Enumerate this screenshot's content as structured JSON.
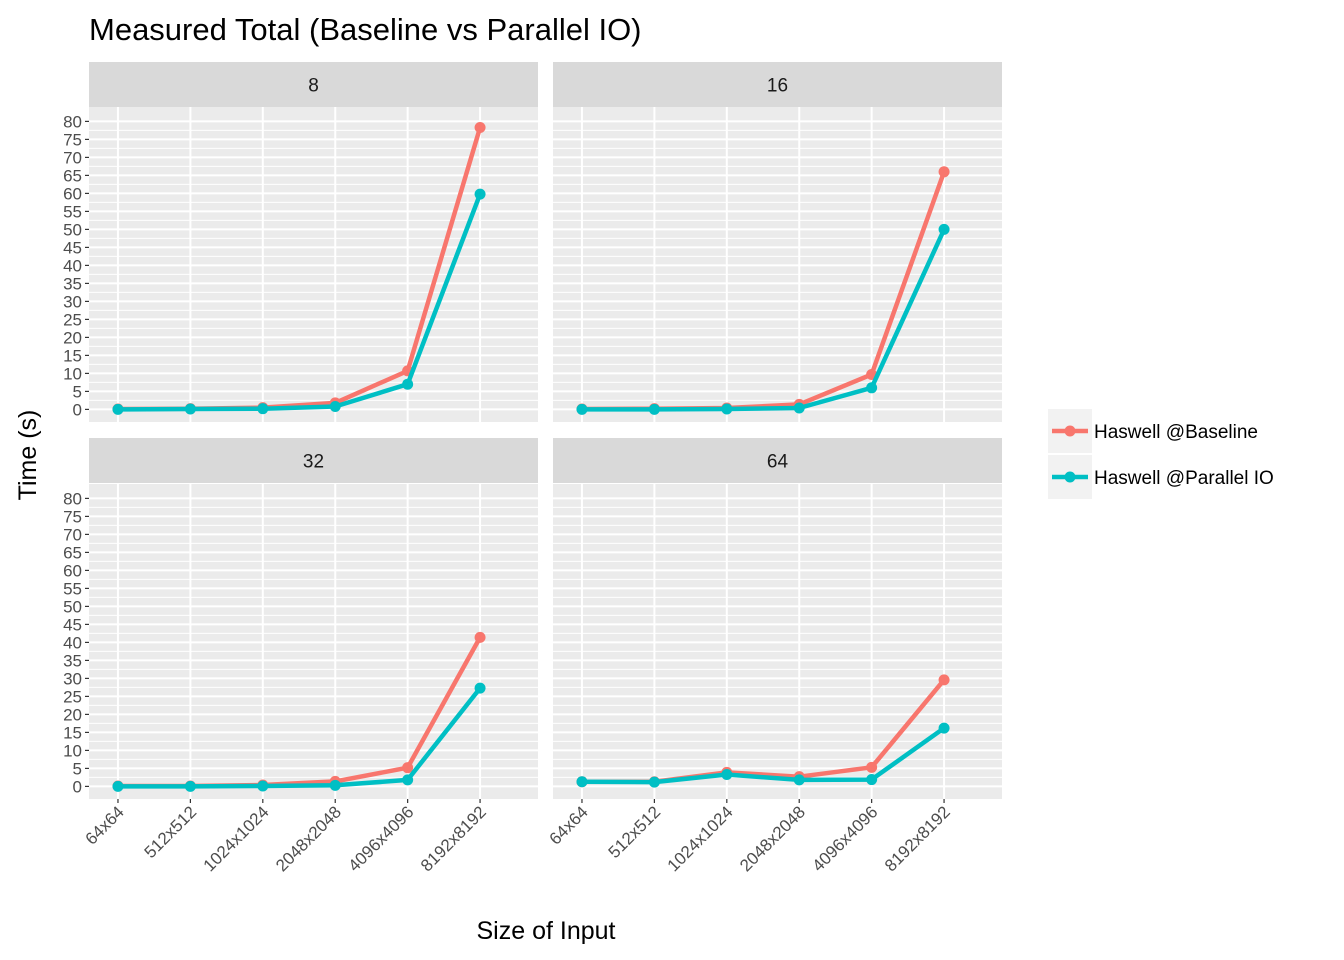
{
  "chart_data": {
    "type": "line",
    "title": "Measured Total (Baseline vs Parallel IO)",
    "xlabel": "Size of Input",
    "ylabel": "Time (s)",
    "categories": [
      "64x64",
      "512x512",
      "1024x1024",
      "2048x2048",
      "4096x4096",
      "8192x8192"
    ],
    "y_ticks": [
      0,
      5,
      10,
      15,
      20,
      25,
      30,
      35,
      40,
      45,
      50,
      55,
      60,
      65,
      70,
      75,
      80
    ],
    "ylim": [
      -3.5,
      84
    ],
    "grid": true,
    "legend_position": "right",
    "series_names": [
      "Haswell @Baseline",
      "Haswell @Parallel IO"
    ],
    "colors": {
      "Haswell @Baseline": "#F8766D",
      "Haswell @Parallel IO": "#00BFC4"
    },
    "panels": [
      {
        "label": "8",
        "series": [
          {
            "name": "Haswell @Baseline",
            "values": [
              0.1,
              0.2,
              0.5,
              1.8,
              10.7,
              78.3
            ]
          },
          {
            "name": "Haswell @Parallel IO",
            "values": [
              0.0,
              0.1,
              0.2,
              0.8,
              7.0,
              59.8
            ]
          }
        ]
      },
      {
        "label": "16",
        "series": [
          {
            "name": "Haswell @Baseline",
            "values": [
              0.1,
              0.2,
              0.4,
              1.4,
              9.7,
              66.0
            ]
          },
          {
            "name": "Haswell @Parallel IO",
            "values": [
              0.0,
              0.0,
              0.1,
              0.4,
              6.0,
              50.0
            ]
          }
        ]
      },
      {
        "label": "32",
        "series": [
          {
            "name": "Haswell @Baseline",
            "values": [
              0.1,
              0.1,
              0.4,
              1.4,
              5.2,
              41.4
            ]
          },
          {
            "name": "Haswell @Parallel IO",
            "values": [
              0.0,
              0.0,
              0.1,
              0.3,
              1.8,
              27.3
            ]
          }
        ]
      },
      {
        "label": "64",
        "series": [
          {
            "name": "Haswell @Baseline",
            "values": [
              1.3,
              1.3,
              3.9,
              2.7,
              5.3,
              29.6
            ]
          },
          {
            "name": "Haswell @Parallel IO",
            "values": [
              1.3,
              1.2,
              3.3,
              1.8,
              1.9,
              16.2
            ]
          }
        ]
      }
    ]
  }
}
